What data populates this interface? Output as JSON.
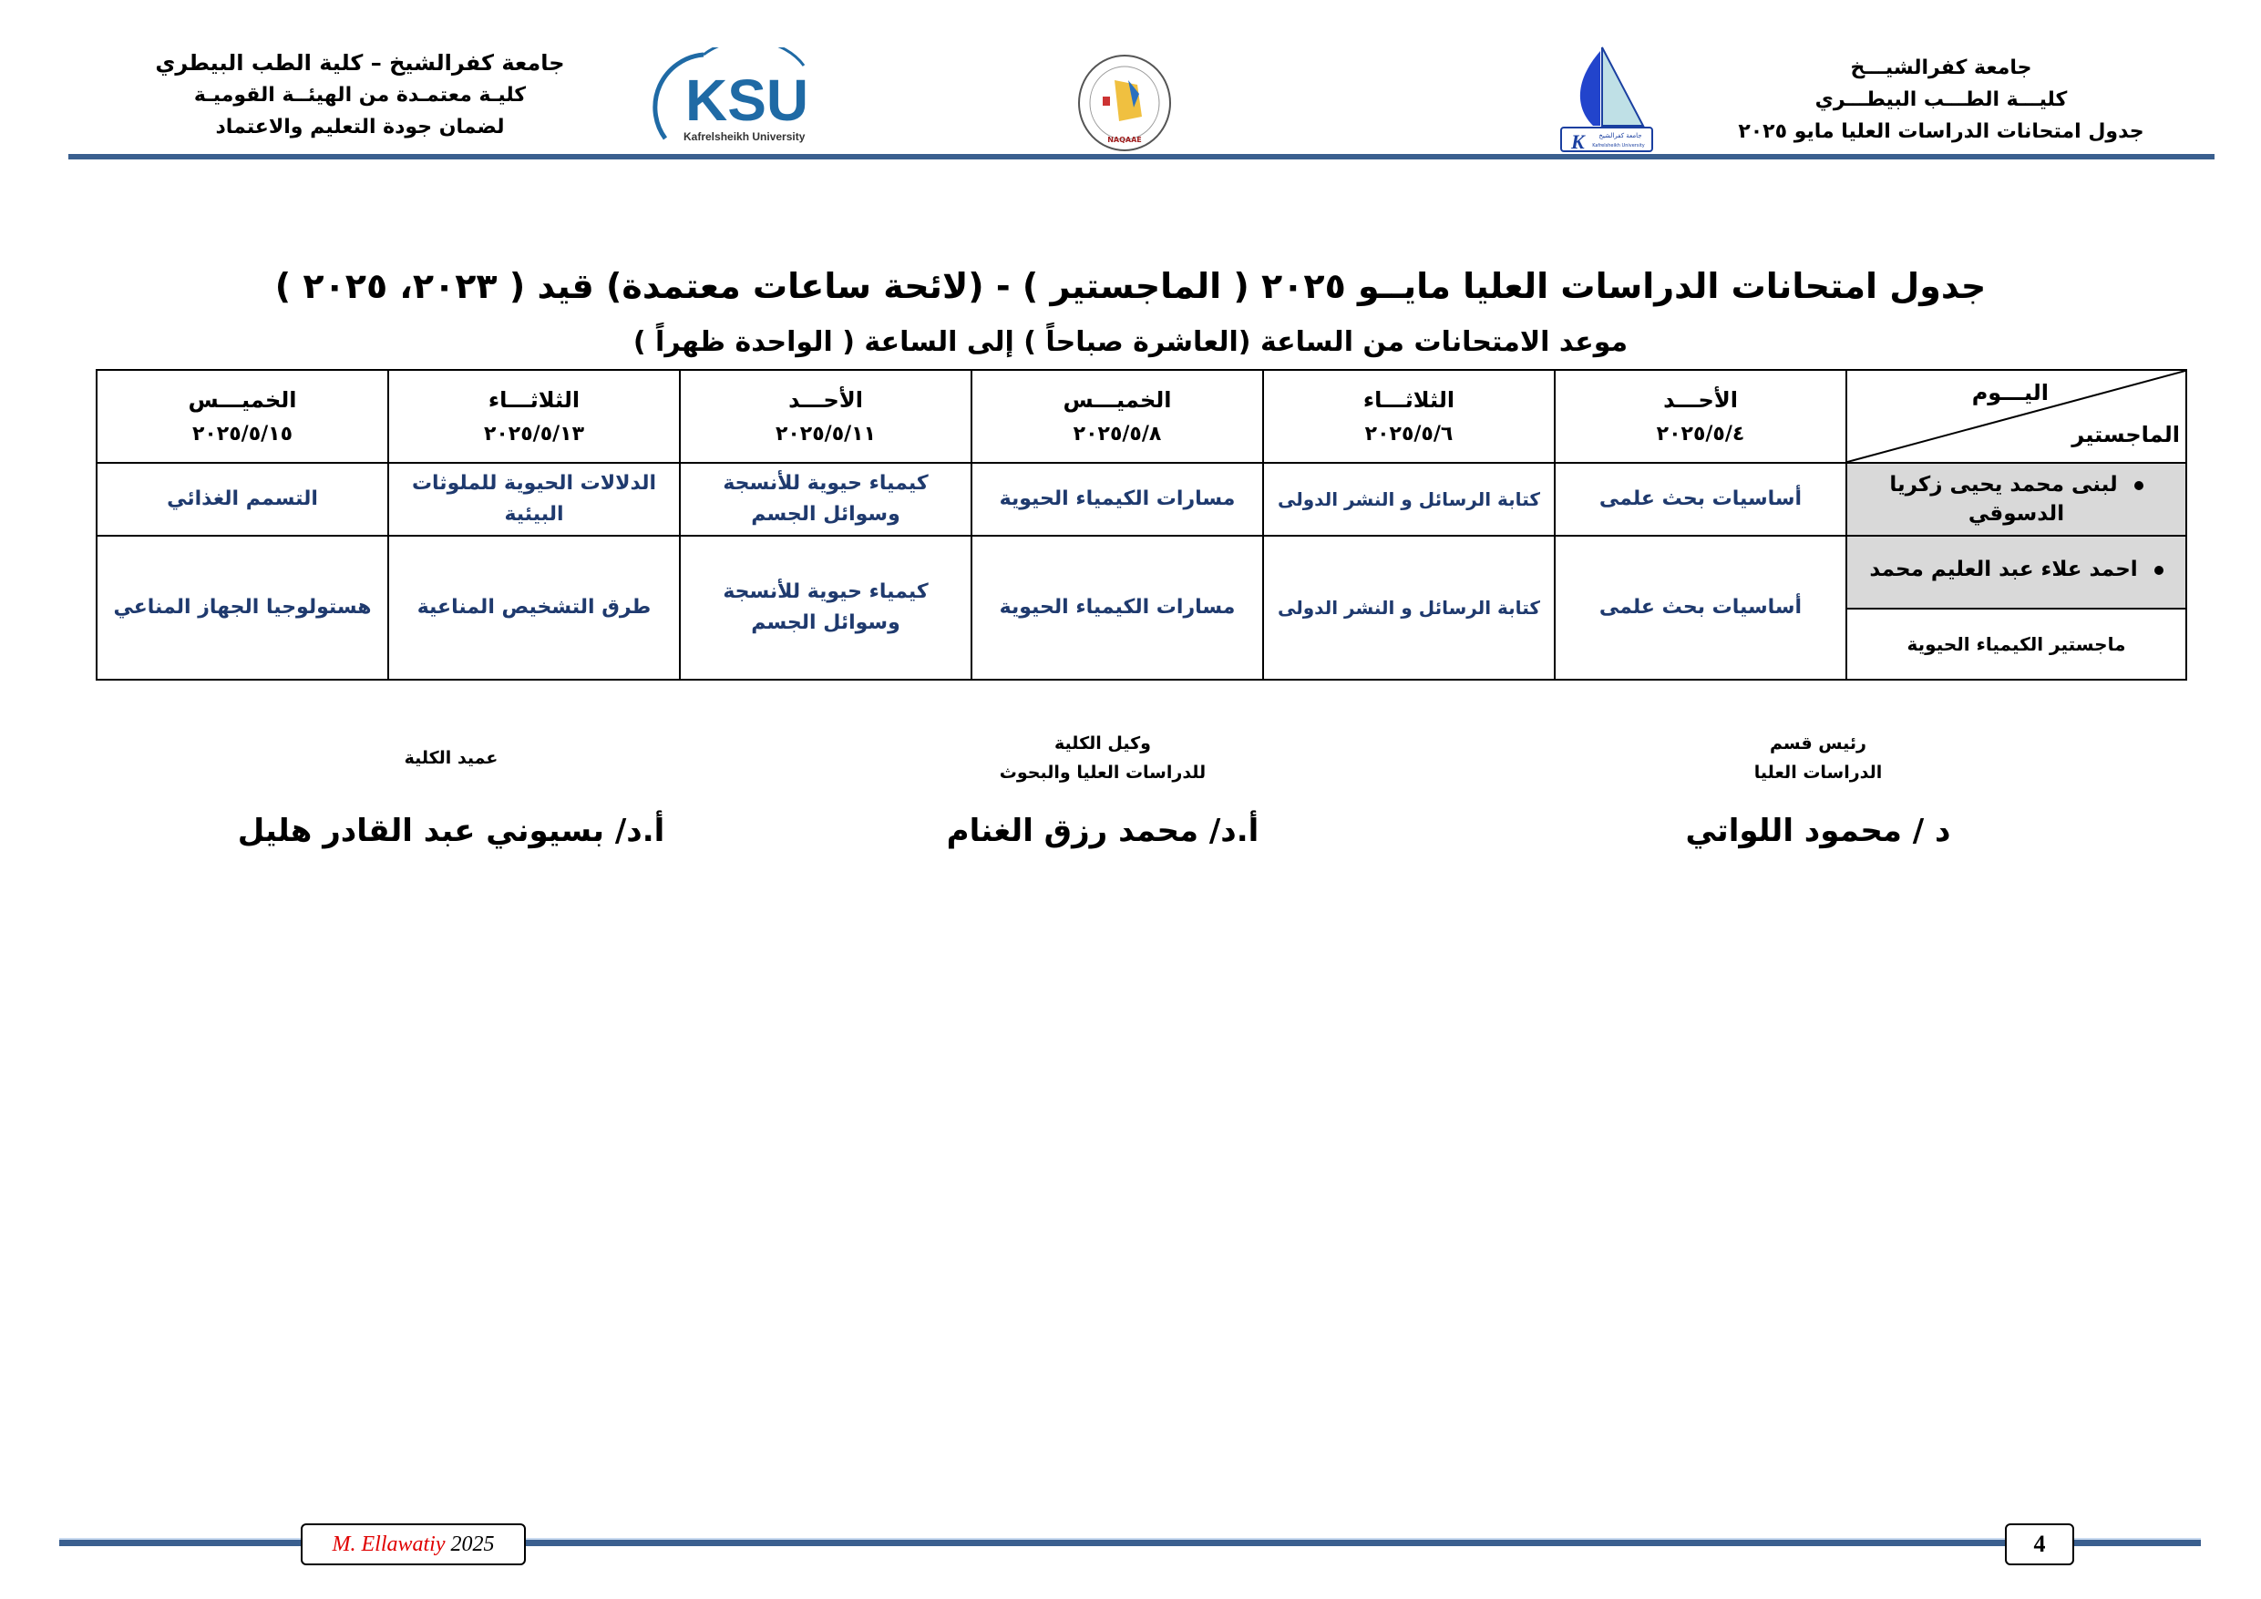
{
  "header": {
    "right_lines": [
      "جامعة كفرالشيـــخ",
      "كليـــة الطـــب البيطـــري",
      "جدول امتحانات الدراسات العليا مايو ٢٠٢٥"
    ],
    "left_lines": [
      "جامعة كفرالشيخ – كلية الطب البيطري",
      "كليـة معتمـدة من الهيئــة القوميـة",
      "لضمان جودة التعليم والاعتماد"
    ],
    "ksu_logo": {
      "text": "KSU",
      "subtext": "Kafrelsheikh University",
      "color": "#1f6aa5"
    },
    "naqaae_logo": {
      "text": "NAQAAE"
    },
    "faculty_logo": {
      "text": "جامعة كفرالشيخ",
      "subtext": "Kafrelsheikh University",
      "letter": "K"
    },
    "rule_color": "#3a5f8f"
  },
  "title": "جدول امتحانات الدراسات العليا مايــو ٢٠٢٥ ( الماجستير ) - (لائحة ساعات معتمدة) قيد ( ٢٠٢٣، ٢٠٢٥ )",
  "subtitle": "موعد الامتحانات من الساعة (العاشرة صباحاً ) إلى الساعة ( الواحدة  ظهراً )",
  "table": {
    "corner_top": "اليـــوم",
    "corner_bottom": "الماجستير",
    "columns": [
      {
        "day": "الأحـــد",
        "date": "٢٠٢٥/٥/٤"
      },
      {
        "day": "الثلاثـــاء",
        "date": "٢٠٢٥/٥/٦"
      },
      {
        "day": "الخميـــس",
        "date": "٢٠٢٥/٥/٨"
      },
      {
        "day": "الأحـــد",
        "date": "٢٠٢٥/٥/١١"
      },
      {
        "day": "الثلاثـــاء",
        "date": "٢٠٢٥/٥/١٣"
      },
      {
        "day": "الخميـــس",
        "date": "٢٠٢٥/٥/١٥"
      }
    ],
    "rows": [
      {
        "student": "لبنى محمد يحيى زكريا الدسوقي",
        "program": "",
        "courses": [
          "أساسيات بحث علمى",
          "كتابة الرسائل و النشر الدولى",
          "مسارات الكيمياء الحيوية",
          "كيمياء حيوية للأنسجة وسوائل الجسم",
          "الدلالات الحيوية للملوثات البيئية",
          "التسمم الغذائي"
        ]
      },
      {
        "student": "احمد علاء عبد العليم محمد",
        "program": "ماجستير الكيمياء الحيوية",
        "courses": [
          "أساسيات بحث علمى",
          "كتابة الرسائل و النشر الدولى",
          "مسارات الكيمياء الحيوية",
          "كيمياء حيوية للأنسجة وسوائل الجسم",
          "طرق التشخيص المناعية",
          "هستولوجيا الجهاز المناعي"
        ]
      }
    ],
    "course_color": "#1f3a6e",
    "shade_color": "#d9d9d9"
  },
  "signatures": [
    {
      "title_lines": [
        "رئيس قسم",
        "الدراسات العليا"
      ],
      "name": "د / محمود اللواتي"
    },
    {
      "title_lines": [
        "وكيل الكلية",
        "للدراسات العليا والبحوث"
      ],
      "name": "أ.د/ محمد رزق الغنام"
    },
    {
      "title_lines": [
        "عميد الكلية"
      ],
      "name": "أ.د/ بسيوني عبد القادر هليل"
    }
  ],
  "footer": {
    "author": "M. Ellawatiy",
    "year": "2025",
    "page": "4",
    "author_color": "#e00000"
  }
}
